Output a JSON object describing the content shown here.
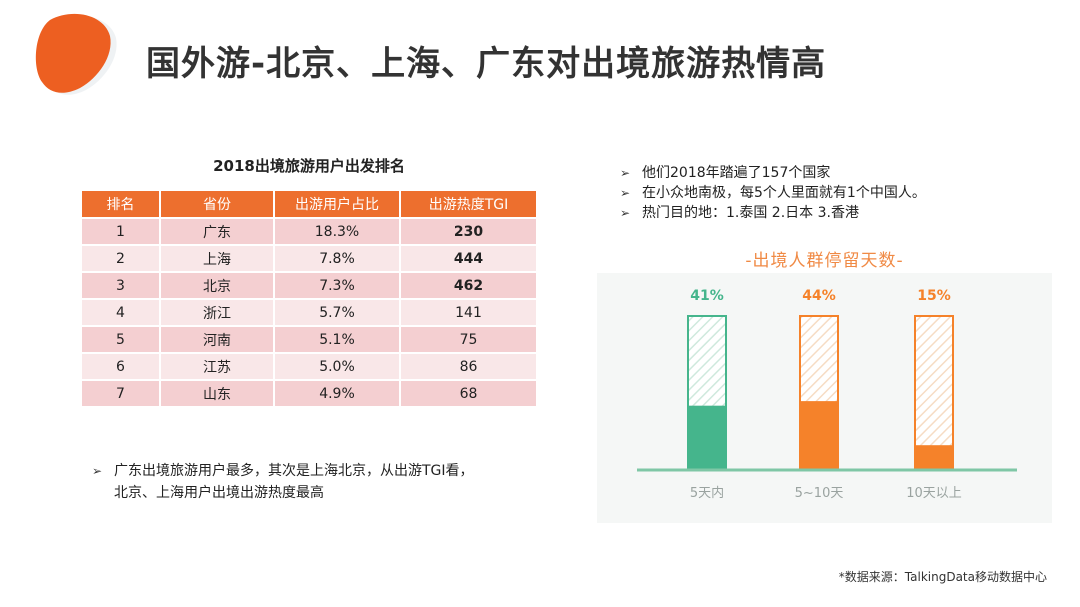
{
  "header": {
    "title": "国外游-北京、上海、广东对出境旅游热情高"
  },
  "table": {
    "title": "2018出境旅游用户出发排名",
    "headers": [
      "排名",
      "省份",
      "出游用户占比",
      "出游热度TGI"
    ],
    "rows": [
      {
        "rank": "1",
        "province": "广东",
        "share": "18.3%",
        "tgi": "230",
        "bold": true
      },
      {
        "rank": "2",
        "province": "上海",
        "share": "7.8%",
        "tgi": "444",
        "bold": true
      },
      {
        "rank": "3",
        "province": "北京",
        "share": "7.3%",
        "tgi": "462",
        "bold": true
      },
      {
        "rank": "4",
        "province": "浙江",
        "share": "5.7%",
        "tgi": "141",
        "bold": false
      },
      {
        "rank": "5",
        "province": "河南",
        "share": "5.1%",
        "tgi": "75",
        "bold": false
      },
      {
        "rank": "6",
        "province": "江苏",
        "share": "5.0%",
        "tgi": "86",
        "bold": false
      },
      {
        "rank": "7",
        "province": "山东",
        "share": "4.9%",
        "tgi": "68",
        "bold": false
      }
    ]
  },
  "notes": [
    "他们2018年踏遍了157个国家",
    "在小众地南极，每5个人里面就有1个中国人。",
    "热门目的地：1.泰国  2.日本  3.香港"
  ],
  "summary": {
    "line1": "广东出境旅游用户最多，其次是上海北京，从出游TGI看，",
    "line2": "北京、上海用户出境出游热度最高"
  },
  "source": "*数据来源：TalkingData移动数据中心",
  "colors": {
    "accent": "#ed6f2e",
    "green": "#45b58c",
    "orange": "#f5822a",
    "title_orange": "#f08a45"
  },
  "chart_data": {
    "type": "bar",
    "title": "-出境人群停留天数-",
    "categories": [
      "5天内",
      "5~10天",
      "10天以上"
    ],
    "values": [
      41,
      44,
      15
    ],
    "value_labels": [
      "41%",
      "44%",
      "15%"
    ],
    "colors": [
      "#45b58c",
      "#f5822a",
      "#f5822a"
    ],
    "ylim": [
      0,
      100
    ]
  }
}
